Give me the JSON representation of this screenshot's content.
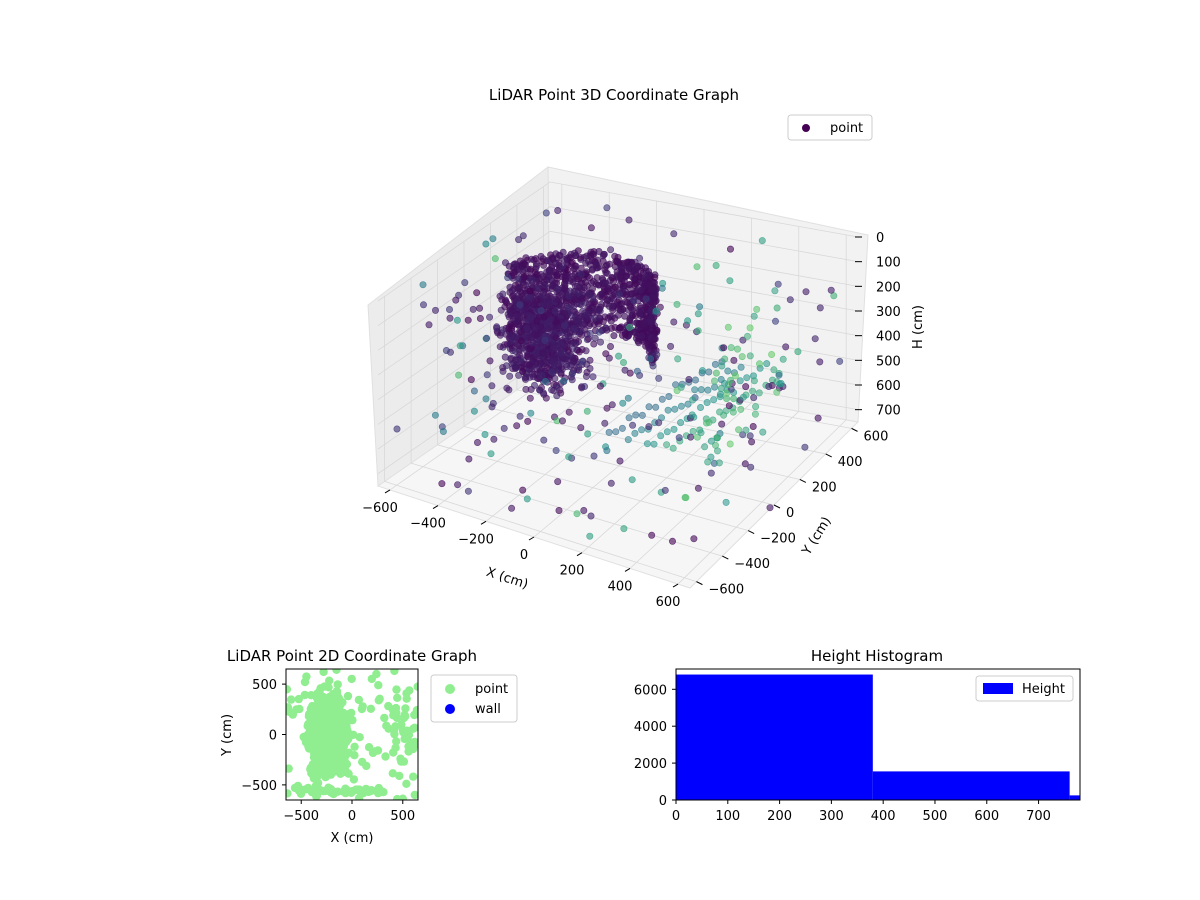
{
  "chart_data": [
    {
      "type": "scatter3d",
      "title": "LiDAR Point 3D Coordinate Graph",
      "xlabel": "X (cm)",
      "ylabel": "Y (cm)",
      "zlabel": "H (cm)",
      "x_ticks": [
        "−600",
        "−400",
        "−200",
        "0",
        "200",
        "400",
        "600"
      ],
      "y_ticks": [
        "−600",
        "−400",
        "−200",
        "0",
        "200",
        "400",
        "600"
      ],
      "z_ticks": [
        "0",
        "100",
        "200",
        "300",
        "400",
        "500",
        "600",
        "700"
      ],
      "xlim": [
        -650,
        650
      ],
      "ylim": [
        -650,
        650
      ],
      "zlim": [
        0,
        750
      ],
      "z_inverted": true,
      "grid": true,
      "legend": {
        "placement": "top-right",
        "entries": [
          "point"
        ]
      },
      "colormap": [
        "#440154",
        "#3b528b",
        "#21918c",
        "#5ec962",
        "#fde725"
      ],
      "series": [
        {
          "name": "point",
          "color": "#440154",
          "description_values": "dense point cloud of the room interior"
        }
      ]
    },
    {
      "type": "scatter",
      "title": "LiDAR Point 2D Coordinate Graph",
      "xlabel": "X (cm)",
      "ylabel": "Y (cm)",
      "x_ticks": [
        "−500",
        "0",
        "500"
      ],
      "y_ticks": [
        "500",
        "0",
        "−500"
      ],
      "xlim": [
        -650,
        650
      ],
      "ylim": [
        -650,
        650
      ],
      "legend": {
        "placement": "outside-right",
        "entries": [
          "point",
          "wall"
        ]
      },
      "series": [
        {
          "name": "point",
          "color": "#90ee90"
        },
        {
          "name": "wall",
          "color": "#0000ff"
        }
      ]
    },
    {
      "type": "bar",
      "title": "Height Histogram",
      "x_ticks": [
        "0",
        "100",
        "200",
        "300",
        "400",
        "500",
        "600",
        "700"
      ],
      "y_ticks": [
        "0",
        "2000",
        "4000",
        "6000"
      ],
      "xlim": [
        0,
        780
      ],
      "ylim": [
        0,
        7100
      ],
      "bins": [
        {
          "x0": 0,
          "x1": 380,
          "count": 6800
        },
        {
          "x0": 380,
          "x1": 760,
          "count": 1550
        },
        {
          "x0": 760,
          "x1": 780,
          "count": 250
        }
      ],
      "color": "#0000ff",
      "legend": {
        "placement": "top-right",
        "entries": [
          "Height"
        ]
      }
    }
  ]
}
